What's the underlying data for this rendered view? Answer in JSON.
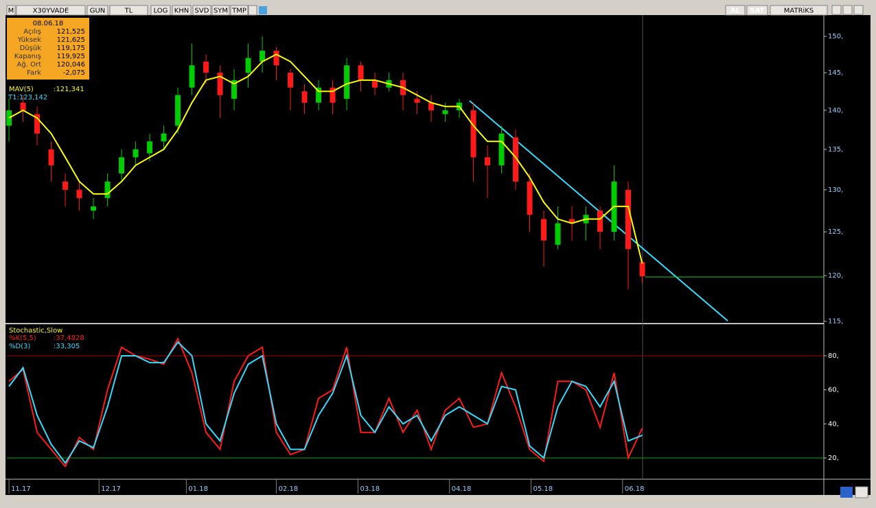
{
  "toolbar": {
    "logo": "M",
    "symbol": "X30YVADE",
    "buttons": [
      "GUN",
      "TL",
      "LOG",
      "KHN",
      "SVD",
      "SYM",
      "TMP"
    ],
    "buy": "AL",
    "sell": "SAT",
    "brand": "MATRiKS"
  },
  "info_box": {
    "date": "08.06.18",
    "rows": [
      [
        "Açılış",
        "121,525"
      ],
      [
        "Yüksek",
        "121,625"
      ],
      [
        "Düşük",
        "119,175"
      ],
      [
        "Kapanış",
        "119,925"
      ],
      [
        "Ağ. Ort",
        "120,046"
      ],
      [
        "Fark",
        "-2,075"
      ]
    ]
  },
  "chart_data": [
    {
      "type": "candlestick",
      "log_scale": true,
      "up_color": "#00cc00",
      "down_color": "#ff1a1a",
      "open": [
        138,
        141,
        139.5,
        135,
        131,
        130,
        127.5,
        129,
        132,
        134,
        134.5,
        136,
        138,
        143,
        146.5,
        145,
        141.5,
        145,
        146.5,
        148,
        145,
        142.5,
        141,
        143,
        141.5,
        146,
        144,
        143,
        144,
        141.5,
        141,
        139.5,
        140,
        140,
        134,
        133,
        136.5,
        131,
        126.5,
        123.5,
        126.5,
        126,
        127.5,
        125,
        130,
        121.525
      ],
      "high": [
        141.5,
        142,
        140.5,
        136,
        132,
        131,
        129,
        132,
        135,
        136,
        137,
        138,
        143,
        149,
        147.5,
        146,
        145.5,
        149,
        150,
        148.5,
        145.5,
        143.5,
        144,
        144,
        147,
        146.5,
        145,
        145,
        145,
        142.5,
        142,
        141,
        141.5,
        141,
        135.5,
        138,
        137.5,
        132,
        127.5,
        128,
        128,
        128,
        128,
        133,
        131,
        121.625
      ],
      "low": [
        136,
        138.5,
        135.5,
        131,
        128,
        127.5,
        126.5,
        128,
        131,
        133,
        133.5,
        135,
        137,
        142,
        143.5,
        139,
        140,
        143,
        145,
        144,
        140,
        139.5,
        140,
        139.5,
        140,
        142.5,
        142,
        142.5,
        140,
        139.5,
        138.5,
        138.5,
        139,
        131,
        129,
        132,
        130,
        125,
        121,
        123,
        124,
        124,
        123,
        124,
        118.5,
        119.175
      ],
      "close": [
        140,
        140,
        137,
        133,
        130,
        129,
        128,
        131,
        134,
        135,
        136,
        137,
        142,
        146,
        145,
        142,
        144,
        147,
        148,
        146,
        143,
        141,
        143,
        141,
        146,
        144,
        143,
        144,
        142,
        141,
        140,
        140,
        141,
        134,
        133,
        137,
        131,
        127,
        124,
        126,
        126,
        127,
        125,
        131,
        123,
        119.925
      ],
      "series": [
        {
          "name": "MAV(5)",
          "color": "#ffff00",
          "value_label": ":121,341",
          "values": [
            139,
            140,
            139,
            137,
            134,
            131,
            129.5,
            129.5,
            131,
            133,
            134,
            135,
            137.5,
            141,
            144,
            144.5,
            143.5,
            144.5,
            146.5,
            147.5,
            146.5,
            144.5,
            142.5,
            142.5,
            143.5,
            144,
            144,
            143.5,
            143,
            142,
            141,
            140.5,
            140.5,
            138,
            136,
            136,
            134,
            131.5,
            128.5,
            126.5,
            126,
            126.5,
            126.5,
            128,
            128,
            121.341
          ]
        }
      ],
      "annotation": "T1:123,142",
      "xlim": [
        -0.15,
        57.9
      ],
      "ylim": [
        114.9,
        153
      ],
      "yticks": [
        {
          "value": 115,
          "label": "115,"
        },
        {
          "value": 120,
          "label": "120,"
        },
        {
          "value": 125,
          "label": "125,"
        },
        {
          "value": 130,
          "label": "130,"
        },
        {
          "value": 135,
          "label": "135,"
        },
        {
          "value": 140,
          "label": "140,"
        },
        {
          "value": 145,
          "label": "145,"
        },
        {
          "value": 150,
          "label": "150,"
        }
      ]
    },
    {
      "type": "line",
      "title": "Stochastic,Slow",
      "series": [
        {
          "name": "%K(5,5)",
          "color": "#ff1a1a",
          "value_label": ":37,4828",
          "values": [
            65,
            72,
            35,
            25,
            15,
            32,
            25,
            60,
            85,
            80,
            78,
            75,
            90,
            70,
            35,
            25,
            65,
            80,
            85,
            35,
            22,
            25,
            55,
            60,
            85,
            35,
            35,
            55,
            35,
            48,
            25,
            48,
            55,
            38,
            40,
            70,
            50,
            25,
            18,
            65,
            65,
            60,
            38,
            70,
            20,
            37.4828
          ]
        },
        {
          "name": "%D(3)",
          "color": "#33ddff",
          "value_label": ":33,305",
          "values": [
            62,
            73,
            45,
            28,
            17,
            30,
            26,
            50,
            80,
            80,
            76,
            76,
            88,
            80,
            40,
            30,
            58,
            75,
            80,
            40,
            25,
            25,
            45,
            58,
            80,
            45,
            35,
            50,
            40,
            45,
            30,
            45,
            50,
            45,
            40,
            62,
            60,
            27,
            20,
            50,
            65,
            62,
            50,
            65,
            30,
            33.305
          ]
        }
      ],
      "ref_lines": [
        {
          "value": 80,
          "color": "#aa0000"
        },
        {
          "value": 20,
          "color": "#00aa00"
        }
      ],
      "xlim": [
        -0.15,
        57.9
      ],
      "ylim": [
        7.9,
        97.7
      ],
      "yticks": [
        {
          "value": 20,
          "label": "20,"
        },
        {
          "value": 40,
          "label": "40,"
        },
        {
          "value": 60,
          "label": "60,"
        },
        {
          "value": 80,
          "label": "80,"
        }
      ],
      "xticks": [
        {
          "value": 0,
          "label": "11.17"
        },
        {
          "value": 6.4,
          "label": "12.17"
        },
        {
          "value": 12.6,
          "label": "01.18"
        },
        {
          "value": 19,
          "label": "02.18"
        },
        {
          "value": 24.8,
          "label": "03.18"
        },
        {
          "value": 31.3,
          "label": "04.18"
        },
        {
          "value": 37.1,
          "label": "05.18"
        },
        {
          "value": 43.6,
          "label": "06.18"
        }
      ]
    }
  ]
}
